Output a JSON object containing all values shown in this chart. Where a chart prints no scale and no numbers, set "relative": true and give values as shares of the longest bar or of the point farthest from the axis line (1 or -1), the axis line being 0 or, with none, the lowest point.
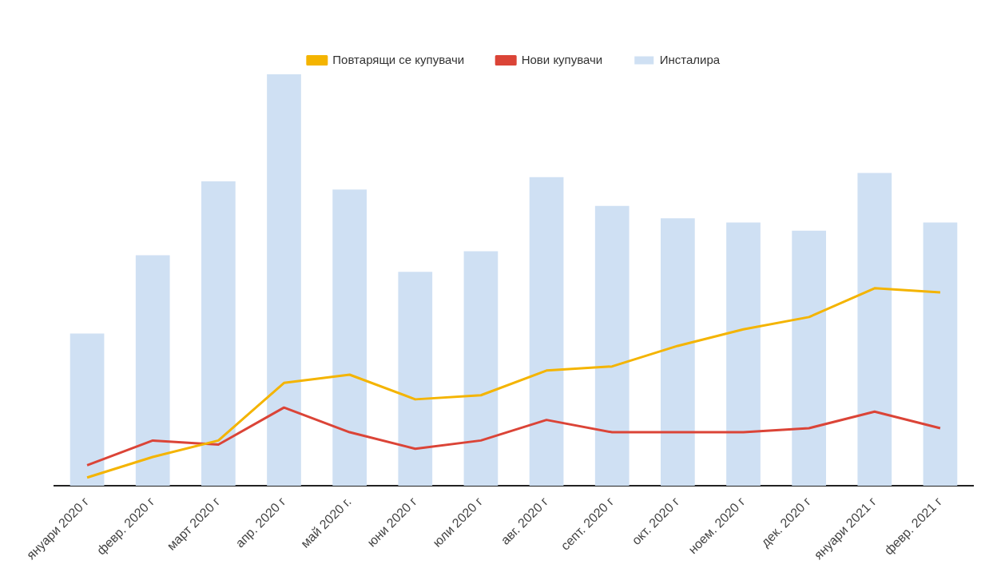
{
  "chart_data": {
    "type": "bar",
    "relative": true,
    "legend": "top",
    "categories": [
      "януари 2020 г",
      "февр. 2020 г",
      "март 2020 г",
      "апр. 2020 г",
      "май 2020 г.",
      "юни 2020 г",
      "юли 2020 г",
      "авг. 2020 г",
      "септ. 2020 г",
      "окт. 2020 г",
      "ноем. 2020 г",
      "дек. 2020 г",
      "януари 2021 г",
      "февр. 2021 г"
    ],
    "series": [
      {
        "name": "Повтарящи се купувачи",
        "type": "line",
        "color": "#f4b400",
        "values": [
          0.02,
          0.07,
          0.11,
          0.25,
          0.27,
          0.21,
          0.22,
          0.28,
          0.29,
          0.34,
          0.38,
          0.41,
          0.48,
          0.47
        ]
      },
      {
        "name": "Нови купувачи",
        "type": "line",
        "color": "#db4437",
        "values": [
          0.05,
          0.11,
          0.1,
          0.19,
          0.13,
          0.09,
          0.11,
          0.16,
          0.13,
          0.13,
          0.13,
          0.14,
          0.18,
          0.14
        ]
      },
      {
        "name": "Инсталира",
        "type": "bar",
        "color": "#cfe0f3",
        "values": [
          0.37,
          0.56,
          0.74,
          1,
          0.72,
          0.52,
          0.57,
          0.75,
          0.68,
          0.65,
          0.64,
          0.62,
          0.76,
          0.64
        ]
      }
    ]
  }
}
